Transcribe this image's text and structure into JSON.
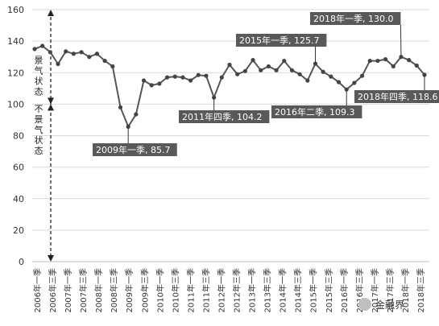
{
  "chart_data": {
    "type": "line",
    "title": "",
    "xlabel": "",
    "ylabel": "",
    "ylim": [
      0,
      160
    ],
    "yticks": [
      0,
      20,
      40,
      60,
      80,
      100,
      120,
      140,
      160
    ],
    "grid": "horizontal",
    "colors": {
      "line": "#555555",
      "marker": "#444444",
      "label_box": "#595959",
      "grid": "#d9d9d9"
    },
    "x_tick_labels": [
      "2006年一季",
      "2006年三季",
      "2007年一季",
      "2007年三季",
      "2008年一季",
      "2008年三季",
      "2009年一季",
      "2009年三季",
      "2010年一季",
      "2010年三季",
      "2011年一季",
      "2011年三季",
      "2012年一季",
      "2012年三季",
      "2013年一季",
      "2013年三季",
      "2014年一季",
      "2014年三季",
      "2015年一季",
      "2015年三季",
      "2016年一季",
      "2016年三季",
      "2017年一季",
      "2017年三季",
      "2018年一季",
      "2018年三季"
    ],
    "values": [
      135,
      137,
      133,
      125.5,
      133.5,
      132,
      133,
      130,
      132,
      127.5,
      124,
      98,
      85.7,
      93.5,
      115,
      112,
      113,
      117,
      117.5,
      117,
      115,
      118.5,
      118,
      104.2,
      117,
      125,
      119,
      121,
      128,
      121.5,
      124,
      121.5,
      127.5,
      121.5,
      119,
      115,
      125.7,
      120.5,
      117.5,
      114,
      109.3,
      113.5,
      118,
      127.5,
      127.5,
      128.5,
      124,
      130.0,
      128,
      124.5,
      118.6
    ],
    "zones": {
      "upper": "景气状态",
      "lower": "不景气状态"
    },
    "annotations": [
      {
        "text": "2009年一季, 85.7",
        "index": 12
      },
      {
        "text": "2011年四季, 104.2",
        "index": 23
      },
      {
        "text": "2015年一季, 125.7",
        "index": 36
      },
      {
        "text": "2016年二季, 109.3",
        "index": 40
      },
      {
        "text": "2018年一季, 130.0",
        "index": 47
      },
      {
        "text": "2018年四季, 118.6",
        "index": 50
      }
    ],
    "watermark": "金融界"
  }
}
